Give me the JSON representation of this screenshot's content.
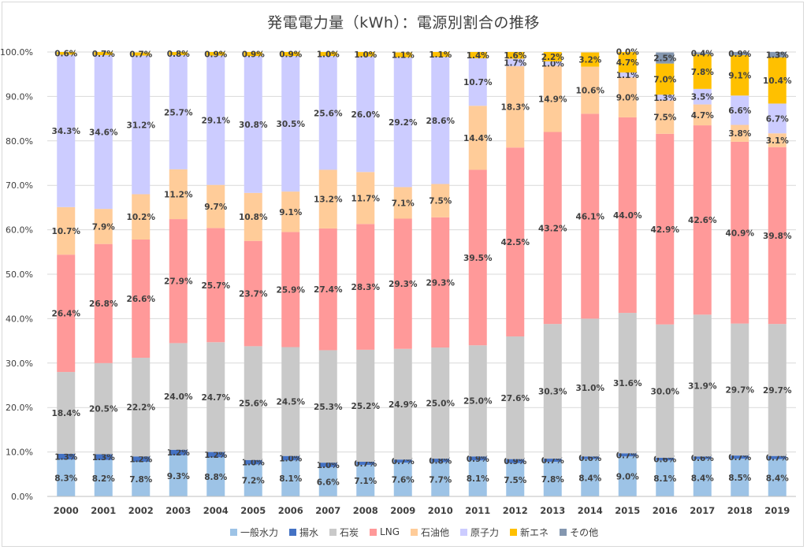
{
  "chart_data": {
    "type": "bar",
    "stacked": true,
    "title": "発電電力量（kWh）：電源別割合の推移",
    "categories": [
      "2000",
      "2001",
      "2002",
      "2003",
      "2004",
      "2005",
      "2006",
      "2007",
      "2008",
      "2009",
      "2010",
      "2011",
      "2012",
      "2013",
      "2014",
      "2015",
      "2016",
      "2017",
      "2018",
      "2019"
    ],
    "ylim": [
      0,
      100
    ],
    "yticks": [
      "0.0%",
      "10.0%",
      "20.0%",
      "30.0%",
      "40.0%",
      "50.0%",
      "60.0%",
      "70.0%",
      "80.0%",
      "90.0%",
      "100.0%"
    ],
    "grid": true,
    "legend_position": "bottom",
    "series": [
      {
        "name": "一般水力",
        "color": "#9dc3e6",
        "values": [
          8.3,
          8.2,
          7.8,
          9.3,
          8.8,
          7.2,
          8.1,
          6.6,
          7.1,
          7.6,
          7.7,
          8.1,
          7.5,
          7.8,
          8.4,
          9.0,
          8.1,
          8.4,
          8.5,
          8.4
        ]
      },
      {
        "name": "揚水",
        "color": "#4472c4",
        "values": [
          1.3,
          1.3,
          1.2,
          1.2,
          1.2,
          1.0,
          1.0,
          1.0,
          0.7,
          0.7,
          0.8,
          0.9,
          0.9,
          0.7,
          0.6,
          0.7,
          0.6,
          0.6,
          0.7,
          0.7
        ]
      },
      {
        "name": "石炭",
        "color": "#c9c9c9",
        "values": [
          18.4,
          20.5,
          22.2,
          24.0,
          24.7,
          25.6,
          24.5,
          25.3,
          25.2,
          24.9,
          25.0,
          25.0,
          27.6,
          30.3,
          31.0,
          31.6,
          30.0,
          31.9,
          29.7,
          29.7
        ]
      },
      {
        "name": "LNG",
        "color": "#ff9999",
        "values": [
          26.4,
          26.8,
          26.6,
          27.9,
          25.7,
          23.7,
          25.9,
          27.4,
          28.3,
          29.3,
          29.3,
          39.5,
          42.5,
          43.2,
          46.1,
          44.0,
          42.9,
          42.6,
          40.9,
          39.8
        ]
      },
      {
        "name": "石油他",
        "color": "#ffcc99",
        "values": [
          10.7,
          7.9,
          10.2,
          11.2,
          9.7,
          10.8,
          9.1,
          13.2,
          11.7,
          7.1,
          7.5,
          14.4,
          18.3,
          14.9,
          10.6,
          9.0,
          7.5,
          4.7,
          3.8,
          3.1
        ]
      },
      {
        "name": "原子力",
        "color": "#ccccff",
        "values": [
          34.3,
          34.6,
          31.2,
          25.7,
          29.1,
          30.8,
          30.5,
          25.6,
          26.0,
          29.2,
          28.6,
          10.7,
          1.7,
          1.0,
          0.0,
          1.1,
          1.3,
          3.5,
          6.6,
          6.7
        ]
      },
      {
        "name": "新エネ",
        "color": "#ffc000",
        "values": [
          0.6,
          0.7,
          0.7,
          0.8,
          0.9,
          0.9,
          0.9,
          1.0,
          1.0,
          1.1,
          1.1,
          1.4,
          1.6,
          2.2,
          3.2,
          4.7,
          7.0,
          7.8,
          9.1,
          10.4
        ]
      },
      {
        "name": "その他",
        "color": "#8497b0",
        "values": [
          0,
          0,
          0,
          0,
          0,
          0,
          0,
          0,
          0,
          0,
          0,
          0,
          0,
          0,
          0,
          0.0,
          2.5,
          0.4,
          0.9,
          1.3
        ]
      }
    ],
    "labels": {
      "一般水力": [
        "8.3%",
        "8.2%",
        "7.8%",
        "9.3%",
        "8.8%",
        "7.2%",
        "8.1%",
        "6.6%",
        "7.1%",
        "7.6%",
        "7.7%",
        "8.1%",
        "7.5%",
        "7.8%",
        "8.4%",
        "9.0%",
        "8.1%",
        "8.4%",
        "8.5%",
        "8.4%"
      ],
      "揚水": [
        "1.3%",
        "1.3%",
        "1.2%",
        "1.2%",
        "1.2%",
        "1.0%",
        "1.0%",
        "1.0%",
        "0.7%",
        "0.7%",
        "0.8%",
        "0.9%",
        "0.9%",
        "0.7%",
        "0.6%",
        "0.7%",
        "0.6%",
        "0.6%",
        "0.7%",
        "0.7%"
      ],
      "石炭": [
        "18.4%",
        "20.5%",
        "22.2%",
        "24.0%",
        "24.7%",
        "25.6%",
        "24.5%",
        "25.3%",
        "25.2%",
        "24.9%",
        "25.0%",
        "25.0%",
        "27.6%",
        "30.3%",
        "31.0%",
        "31.6%",
        "30.0%",
        "31.9%",
        "29.7%",
        "29.7%"
      ],
      "LNG": [
        "26.4%",
        "26.8%",
        "26.6%",
        "27.9%",
        "25.7%",
        "23.7%",
        "25.9%",
        "27.4%",
        "28.3%",
        "29.3%",
        "29.3%",
        "39.5%",
        "42.5%",
        "43.2%",
        "46.1%",
        "44.0%",
        "42.9%",
        "42.6%",
        "40.9%",
        "39.8%"
      ],
      "石油他": [
        "10.7%",
        "7.9%",
        "10.2%",
        "11.2%",
        "9.7%",
        "10.8%",
        "9.1%",
        "13.2%",
        "11.7%",
        "7.1%",
        "7.5%",
        "14.4%",
        "18.3%",
        "14.9%",
        "10.6%",
        "9.0%",
        "7.5%",
        "4.7%",
        "3.8%",
        "3.1%"
      ],
      "原子力": [
        "34.3%",
        "34.6%",
        "31.2%",
        "25.7%",
        "29.1%",
        "30.8%",
        "30.5%",
        "25.6%",
        "26.0%",
        "29.2%",
        "28.6%",
        "10.7%",
        "1.7%",
        "1.0%",
        "",
        "1.1%",
        "1.3%",
        "3.5%",
        "6.6%",
        "6.7%"
      ],
      "新エネ": [
        "0.6%",
        "0.7%",
        "0.7%",
        "0.8%",
        "0.9%",
        "0.9%",
        "0.9%",
        "1.0%",
        "1.0%",
        "1.1%",
        "1.1%",
        "1.4%",
        "1.6%",
        "2.2%",
        "3.2%",
        "4.7%",
        "7.0%",
        "7.8%",
        "9.1%",
        "10.4%"
      ],
      "その他": [
        "",
        "",
        "",
        "",
        "",
        "",
        "",
        "",
        "",
        "",
        "",
        "",
        "",
        "",
        "",
        "0.0%",
        "2.5%",
        "0.4%",
        "0.9%",
        "1.3%"
      ]
    }
  }
}
